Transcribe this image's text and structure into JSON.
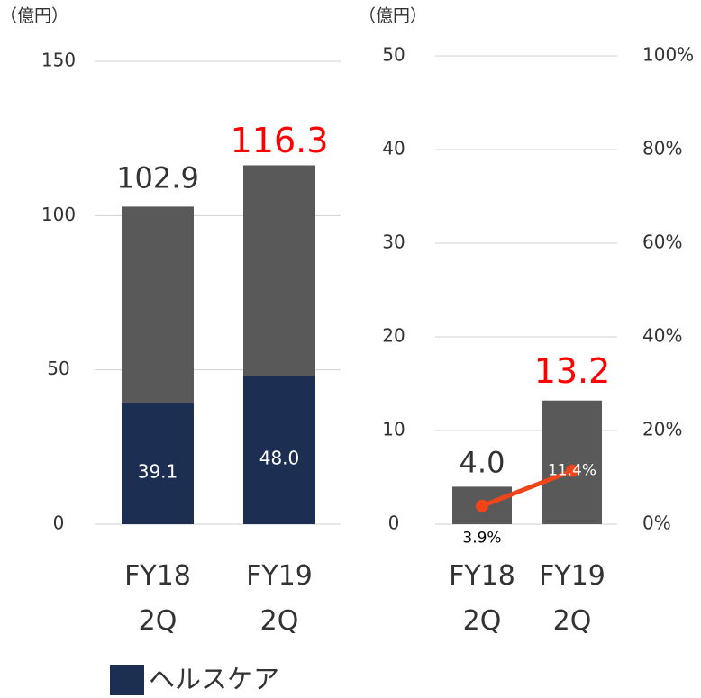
{
  "chart_data": [
    {
      "type": "bar",
      "stacked": true,
      "unit_label": "（億円）",
      "categories": [
        "FY18 2Q",
        "FY19 2Q"
      ],
      "series": [
        {
          "name": "ヘルスケア",
          "color": "#1c2f52",
          "values": [
            39.1,
            48.0
          ],
          "value_labels": [
            "39.1",
            "48.0"
          ],
          "value_label_colors": [
            "#ffffff",
            "#ffffff"
          ]
        },
        {
          "color": "#595959",
          "values": [
            63.8,
            68.3
          ]
        }
      ],
      "totals": [
        102.9,
        116.3
      ],
      "total_label_colors": [
        "#333333",
        "#ff0000"
      ],
      "ylim": [
        0,
        150
      ],
      "yticks": [
        0,
        50,
        100,
        150
      ],
      "grid": true,
      "legend": "bottom"
    },
    {
      "type": "bar",
      "unit_label": "（億円）",
      "categories": [
        "FY18 2Q",
        "FY19 2Q"
      ],
      "series": [
        {
          "color": "#595959",
          "values": [
            4.0,
            13.2
          ],
          "value_labels": [
            "4.0",
            "13.2"
          ],
          "value_label_colors": [
            "#333333",
            "#ff0000"
          ]
        },
        {
          "type": "line",
          "axis": "y2",
          "color": "#f0441a",
          "values": [
            3.9,
            11.4
          ],
          "value_labels": [
            "3.9%",
            "11.4%"
          ],
          "value_label_colors": [
            "#000000",
            "#ffffff"
          ]
        }
      ],
      "ylim": [
        0,
        50
      ],
      "yticks": [
        0,
        10,
        20,
        30,
        40,
        50
      ],
      "y2lim": [
        0,
        100
      ],
      "y2ticks": [
        {
          "value": 0,
          "label": "0%"
        },
        {
          "value": 20,
          "label": "20%"
        },
        {
          "value": 40,
          "label": "40%"
        },
        {
          "value": 60,
          "label": "60%"
        },
        {
          "value": 80,
          "label": "80%"
        },
        {
          "value": 100,
          "label": "100%"
        }
      ],
      "grid": true
    }
  ]
}
